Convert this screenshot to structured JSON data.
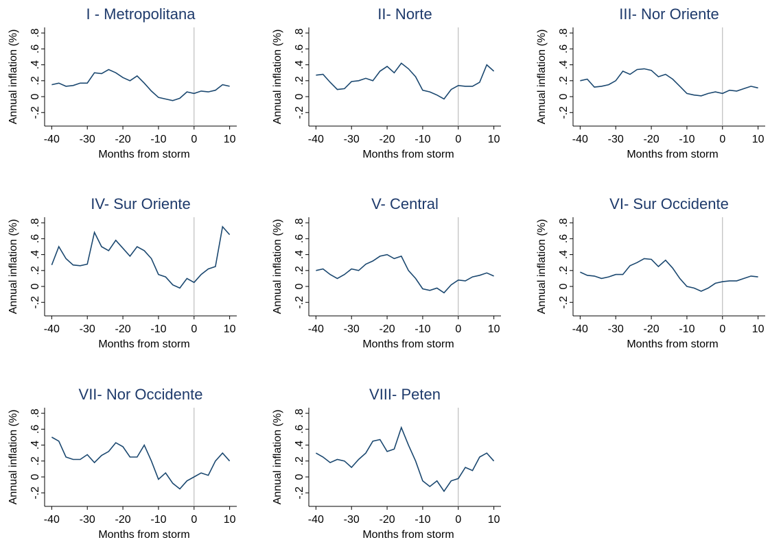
{
  "chart_data": [
    {
      "type": "line",
      "title": "I - Metropolitana",
      "xlabel": "Months from storm",
      "ylabel": "Annual inflation (%)",
      "x": [
        -40,
        -38,
        -36,
        -34,
        -32,
        -30,
        -28,
        -26,
        -24,
        -22,
        -20,
        -18,
        -16,
        -14,
        -12,
        -10,
        -8,
        -6,
        -4,
        -2,
        0,
        2,
        4,
        6,
        8,
        10
      ],
      "series": [
        {
          "color": "#1a476f",
          "values": [
            0.15,
            0.17,
            0.13,
            0.14,
            0.17,
            0.17,
            0.3,
            0.29,
            0.34,
            0.3,
            0.24,
            0.2,
            0.26,
            0.17,
            0.07,
            -0.01,
            -0.03,
            -0.05,
            -0.02,
            0.06,
            0.04,
            0.07,
            0.06,
            0.08,
            0.15,
            0.13
          ]
        }
      ],
      "xlim": [
        -42,
        12
      ],
      "xticks": [
        -40,
        -30,
        -20,
        -10,
        0,
        10
      ],
      "ylim": [
        -0.37,
        0.87
      ],
      "yticks": [
        {
          "value": -0.2,
          "label": "-.2"
        },
        0,
        {
          "value": 0.2,
          "label": ".2"
        },
        {
          "value": 0.4,
          "label": ".4"
        },
        {
          "value": 0.6,
          "label": ".6"
        },
        {
          "value": 0.8,
          "label": ".8"
        }
      ],
      "vline": 0
    },
    {
      "type": "line",
      "title": "II- Norte",
      "xlabel": "Months from storm",
      "ylabel": "Annual inflation (%)",
      "x": [
        -40,
        -38,
        -36,
        -34,
        -32,
        -30,
        -28,
        -26,
        -24,
        -22,
        -20,
        -18,
        -16,
        -14,
        -12,
        -10,
        -8,
        -6,
        -4,
        -2,
        0,
        2,
        4,
        6,
        8,
        10
      ],
      "series": [
        {
          "color": "#1a476f",
          "values": [
            0.27,
            0.28,
            0.18,
            0.09,
            0.1,
            0.19,
            0.2,
            0.23,
            0.2,
            0.32,
            0.38,
            0.3,
            0.42,
            0.35,
            0.25,
            0.08,
            0.06,
            0.02,
            -0.03,
            0.09,
            0.14,
            0.13,
            0.13,
            0.18,
            0.4,
            0.32
          ]
        }
      ],
      "xlim": [
        -42,
        12
      ],
      "xticks": [
        -40,
        -30,
        -20,
        -10,
        0,
        10
      ],
      "ylim": [
        -0.37,
        0.87
      ],
      "yticks": [
        {
          "value": -0.2,
          "label": "-.2"
        },
        0,
        {
          "value": 0.2,
          "label": ".2"
        },
        {
          "value": 0.4,
          "label": ".4"
        },
        {
          "value": 0.6,
          "label": ".6"
        },
        {
          "value": 0.8,
          "label": ".8"
        }
      ],
      "vline": 0
    },
    {
      "type": "line",
      "title": "III- Nor Oriente",
      "xlabel": "Months from storm",
      "ylabel": "Annual inflation (%)",
      "x": [
        -40,
        -38,
        -36,
        -34,
        -32,
        -30,
        -28,
        -26,
        -24,
        -22,
        -20,
        -18,
        -16,
        -14,
        -12,
        -10,
        -8,
        -6,
        -4,
        -2,
        0,
        2,
        4,
        6,
        8,
        10
      ],
      "series": [
        {
          "color": "#1a476f",
          "values": [
            0.2,
            0.22,
            0.12,
            0.13,
            0.15,
            0.2,
            0.32,
            0.28,
            0.34,
            0.35,
            0.33,
            0.25,
            0.28,
            0.22,
            0.13,
            0.04,
            0.02,
            0.01,
            0.04,
            0.06,
            0.04,
            0.08,
            0.07,
            0.1,
            0.13,
            0.11
          ]
        }
      ],
      "xlim": [
        -42,
        12
      ],
      "xticks": [
        -40,
        -30,
        -20,
        -10,
        0,
        10
      ],
      "ylim": [
        -0.37,
        0.87
      ],
      "yticks": [
        {
          "value": -0.2,
          "label": "-.2"
        },
        0,
        {
          "value": 0.2,
          "label": ".2"
        },
        {
          "value": 0.4,
          "label": ".4"
        },
        {
          "value": 0.6,
          "label": ".6"
        },
        {
          "value": 0.8,
          "label": ".8"
        }
      ],
      "vline": 0
    },
    {
      "type": "line",
      "title": "IV- Sur Oriente",
      "xlabel": "Months from storm",
      "ylabel": "Annual inflation (%)",
      "x": [
        -40,
        -38,
        -36,
        -34,
        -32,
        -30,
        -28,
        -26,
        -24,
        -22,
        -20,
        -18,
        -16,
        -14,
        -12,
        -10,
        -8,
        -6,
        -4,
        -2,
        0,
        2,
        4,
        6,
        8,
        10
      ],
      "series": [
        {
          "color": "#1a476f",
          "values": [
            0.27,
            0.5,
            0.35,
            0.27,
            0.26,
            0.28,
            0.68,
            0.5,
            0.45,
            0.58,
            0.48,
            0.38,
            0.5,
            0.45,
            0.35,
            0.15,
            0.12,
            0.02,
            -0.02,
            0.1,
            0.05,
            0.15,
            0.22,
            0.25,
            0.75,
            0.65
          ]
        }
      ],
      "xlim": [
        -42,
        12
      ],
      "xticks": [
        -40,
        -30,
        -20,
        -10,
        0,
        10
      ],
      "ylim": [
        -0.37,
        0.87
      ],
      "yticks": [
        {
          "value": -0.2,
          "label": "-.2"
        },
        0,
        {
          "value": 0.2,
          "label": ".2"
        },
        {
          "value": 0.4,
          "label": ".4"
        },
        {
          "value": 0.6,
          "label": ".6"
        },
        {
          "value": 0.8,
          "label": ".8"
        }
      ],
      "vline": 0
    },
    {
      "type": "line",
      "title": "V- Central",
      "xlabel": "Months from storm",
      "ylabel": "Annual inflation (%)",
      "x": [
        -40,
        -38,
        -36,
        -34,
        -32,
        -30,
        -28,
        -26,
        -24,
        -22,
        -20,
        -18,
        -16,
        -14,
        -12,
        -10,
        -8,
        -6,
        -4,
        -2,
        0,
        2,
        4,
        6,
        8,
        10
      ],
      "series": [
        {
          "color": "#1a476f",
          "values": [
            0.2,
            0.22,
            0.15,
            0.1,
            0.15,
            0.22,
            0.2,
            0.28,
            0.32,
            0.38,
            0.4,
            0.35,
            0.38,
            0.2,
            0.1,
            -0.03,
            -0.05,
            -0.02,
            -0.08,
            0.02,
            0.08,
            0.07,
            0.12,
            0.14,
            0.17,
            0.13
          ]
        }
      ],
      "xlim": [
        -42,
        12
      ],
      "xticks": [
        -40,
        -30,
        -20,
        -10,
        0,
        10
      ],
      "ylim": [
        -0.37,
        0.87
      ],
      "yticks": [
        {
          "value": -0.2,
          "label": "-.2"
        },
        0,
        {
          "value": 0.2,
          "label": ".2"
        },
        {
          "value": 0.4,
          "label": ".4"
        },
        {
          "value": 0.6,
          "label": ".6"
        },
        {
          "value": 0.8,
          "label": ".8"
        }
      ],
      "vline": 0
    },
    {
      "type": "line",
      "title": "VI- Sur Occidente",
      "xlabel": "Months from storm",
      "ylabel": "Annual inflation (%)",
      "x": [
        -40,
        -38,
        -36,
        -34,
        -32,
        -30,
        -28,
        -26,
        -24,
        -22,
        -20,
        -18,
        -16,
        -14,
        -12,
        -10,
        -8,
        -6,
        -4,
        -2,
        0,
        2,
        4,
        6,
        8,
        10
      ],
      "series": [
        {
          "color": "#1a476f",
          "values": [
            0.18,
            0.14,
            0.13,
            0.1,
            0.12,
            0.15,
            0.15,
            0.26,
            0.3,
            0.35,
            0.34,
            0.25,
            0.33,
            0.23,
            0.1,
            0.0,
            -0.02,
            -0.06,
            -0.02,
            0.04,
            0.06,
            0.07,
            0.07,
            0.1,
            0.13,
            0.12
          ]
        }
      ],
      "xlim": [
        -42,
        12
      ],
      "xticks": [
        -40,
        -30,
        -20,
        -10,
        0,
        10
      ],
      "ylim": [
        -0.37,
        0.87
      ],
      "yticks": [
        {
          "value": -0.2,
          "label": "-.2"
        },
        0,
        {
          "value": 0.2,
          "label": ".2"
        },
        {
          "value": 0.4,
          "label": ".4"
        },
        {
          "value": 0.6,
          "label": ".6"
        },
        {
          "value": 0.8,
          "label": ".8"
        }
      ],
      "vline": 0
    },
    {
      "type": "line",
      "title": "VII- Nor Occidente",
      "xlabel": "Months from storm",
      "ylabel": "Annual inflation (%)",
      "x": [
        -40,
        -38,
        -36,
        -34,
        -32,
        -30,
        -28,
        -26,
        -24,
        -22,
        -20,
        -18,
        -16,
        -14,
        -12,
        -10,
        -8,
        -6,
        -4,
        -2,
        0,
        2,
        4,
        6,
        8,
        10
      ],
      "series": [
        {
          "color": "#1a476f",
          "values": [
            0.5,
            0.45,
            0.25,
            0.22,
            0.22,
            0.28,
            0.18,
            0.27,
            0.32,
            0.43,
            0.38,
            0.25,
            0.25,
            0.4,
            0.2,
            -0.03,
            0.05,
            -0.08,
            -0.15,
            -0.05,
            0.0,
            0.05,
            0.02,
            0.2,
            0.3,
            0.2
          ]
        }
      ],
      "xlim": [
        -42,
        12
      ],
      "xticks": [
        -40,
        -30,
        -20,
        -10,
        0,
        10
      ],
      "ylim": [
        -0.37,
        0.87
      ],
      "yticks": [
        {
          "value": -0.2,
          "label": "-.2"
        },
        0,
        {
          "value": 0.2,
          "label": ".2"
        },
        {
          "value": 0.4,
          "label": ".4"
        },
        {
          "value": 0.6,
          "label": ".6"
        },
        {
          "value": 0.8,
          "label": ".8"
        }
      ],
      "vline": 0
    },
    {
      "type": "line",
      "title": "VIII- Peten",
      "xlabel": "Months from storm",
      "ylabel": "Annual inflation (%)",
      "x": [
        -40,
        -38,
        -36,
        -34,
        -32,
        -30,
        -28,
        -26,
        -24,
        -22,
        -20,
        -18,
        -16,
        -14,
        -12,
        -10,
        -8,
        -6,
        -4,
        -2,
        0,
        2,
        4,
        6,
        8,
        10
      ],
      "series": [
        {
          "color": "#1a476f",
          "values": [
            0.3,
            0.25,
            0.18,
            0.22,
            0.2,
            0.12,
            0.22,
            0.3,
            0.45,
            0.47,
            0.32,
            0.35,
            0.62,
            0.4,
            0.2,
            -0.05,
            -0.12,
            -0.05,
            -0.18,
            -0.05,
            -0.02,
            0.12,
            0.08,
            0.25,
            0.3,
            0.2
          ]
        }
      ],
      "xlim": [
        -42,
        12
      ],
      "xticks": [
        -40,
        -30,
        -20,
        -10,
        0,
        10
      ],
      "ylim": [
        -0.37,
        0.87
      ],
      "yticks": [
        {
          "value": -0.2,
          "label": "-.2"
        },
        0,
        {
          "value": 0.2,
          "label": ".2"
        },
        {
          "value": 0.4,
          "label": ".4"
        },
        {
          "value": 0.6,
          "label": ".6"
        },
        {
          "value": 0.8,
          "label": ".8"
        }
      ],
      "vline": 0
    }
  ]
}
